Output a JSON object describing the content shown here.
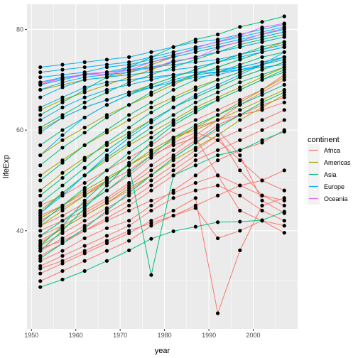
{
  "chart_data": {
    "type": "line",
    "xlabel": "year",
    "ylabel": "lifeExp",
    "xlim": [
      1949,
      2010
    ],
    "ylim": [
      20.5,
      85
    ],
    "x_ticks": [
      1950,
      1960,
      1970,
      1980,
      1990,
      2000
    ],
    "y_ticks": [
      40,
      60,
      80
    ],
    "x": [
      1952,
      1957,
      1962,
      1967,
      1972,
      1977,
      1982,
      1987,
      1992,
      1997,
      2002,
      2007
    ],
    "grid": true,
    "points_color": "#000000",
    "legend": {
      "title": "continent",
      "placement": "right",
      "entries": [
        {
          "name": "Africa",
          "color": "#F8766D"
        },
        {
          "name": "Americas",
          "color": "#A3A500"
        },
        {
          "name": "Asia",
          "color": "#00BF7D"
        },
        {
          "name": "Europe",
          "color": "#00B0F6"
        },
        {
          "name": "Oceania",
          "color": "#E76BF3"
        }
      ]
    },
    "series": [
      {
        "group": "Africa",
        "values": [
          30.0,
          32.0,
          34.0,
          36.0,
          38.0,
          41.0,
          43.0,
          45.0,
          47.0,
          49.0,
          50.0,
          52.0
        ]
      },
      {
        "group": "Africa",
        "values": [
          31.5,
          33.5,
          35.5,
          37.5,
          39.5,
          42.0,
          44.0,
          46.5,
          23.6,
          36.1,
          45.0,
          46.5
        ]
      },
      {
        "group": "Africa",
        "values": [
          33.0,
          35.0,
          37.0,
          39.0,
          41.0,
          44.0,
          46.5,
          48.0,
          49.0,
          47.0,
          44.0,
          42.0
        ]
      },
      {
        "group": "Africa",
        "values": [
          34.0,
          36.0,
          38.5,
          40.5,
          42.0,
          45.0,
          48.0,
          51.0,
          54.0,
          56.0,
          57.5,
          60.0
        ]
      },
      {
        "group": "Africa",
        "values": [
          35.0,
          37.5,
          40.0,
          42.5,
          45.0,
          48.0,
          51.0,
          54.0,
          56.0,
          58.0,
          60.0,
          62.0
        ]
      },
      {
        "group": "Africa",
        "values": [
          36.0,
          38.5,
          41.0,
          43.5,
          46.0,
          49.0,
          52.0,
          55.0,
          58.0,
          60.0,
          62.0,
          64.0
        ]
      },
      {
        "group": "Africa",
        "values": [
          37.0,
          39.5,
          42.0,
          44.5,
          47.0,
          50.0,
          53.0,
          56.0,
          59.0,
          52.0,
          47.0,
          45.0
        ]
      },
      {
        "group": "Africa",
        "values": [
          38.0,
          40.5,
          43.0,
          45.5,
          48.0,
          51.0,
          54.5,
          57.5,
          60.0,
          55.0,
          46.0,
          43.5
        ]
      },
      {
        "group": "Africa",
        "values": [
          39.0,
          41.0,
          43.5,
          46.0,
          49.0,
          52.0,
          55.0,
          58.0,
          61.0,
          63.0,
          65.0,
          66.5
        ]
      },
      {
        "group": "Africa",
        "values": [
          40.0,
          42.0,
          44.0,
          46.5,
          49.5,
          53.0,
          56.0,
          59.0,
          62.0,
          65.0,
          67.5,
          70.0
        ]
      },
      {
        "group": "Africa",
        "values": [
          41.0,
          43.0,
          45.5,
          48.0,
          51.0,
          54.5,
          57.5,
          59.5,
          58.0,
          54.0,
          50.0,
          48.0
        ]
      },
      {
        "group": "Africa",
        "values": [
          42.0,
          44.5,
          47.0,
          49.5,
          52.0,
          55.0,
          57.0,
          58.5,
          51.0,
          44.0,
          42.0,
          41.0
        ]
      },
      {
        "group": "Africa",
        "values": [
          43.0,
          45.0,
          47.5,
          50.0,
          53.0,
          56.0,
          58.5,
          60.5,
          62.0,
          63.0,
          64.0,
          65.5
        ]
      },
      {
        "group": "Africa",
        "values": [
          45.0,
          47.0,
          49.5,
          52.0,
          54.5,
          57.0,
          60.0,
          62.0,
          64.0,
          66.0,
          68.0,
          71.0
        ]
      },
      {
        "group": "Africa",
        "values": [
          32.5,
          34.0,
          36.0,
          38.0,
          40.0,
          41.5,
          43.0,
          44.5,
          38.5,
          40.0,
          42.0,
          39.6
        ]
      },
      {
        "group": "Africa",
        "values": [
          36.5,
          38.0,
          40.0,
          42.0,
          44.0,
          46.0,
          47.5,
          49.5,
          51.0,
          49.0,
          47.0,
          46.0
        ]
      },
      {
        "group": "Americas",
        "values": [
          37.5,
          40.5,
          43.0,
          45.5,
          48.5,
          51.0,
          54.0,
          56.5,
          59.0,
          62.0,
          64.5,
          67.0
        ]
      },
      {
        "group": "Americas",
        "values": [
          41.0,
          44.0,
          47.0,
          50.0,
          53.0,
          55.5,
          58.0,
          60.5,
          63.0,
          65.5,
          68.0,
          70.5
        ]
      },
      {
        "group": "Americas",
        "values": [
          44.0,
          47.5,
          51.0,
          54.0,
          57.0,
          59.5,
          62.0,
          64.5,
          66.5,
          68.5,
          70.5,
          72.5
        ]
      },
      {
        "group": "Americas",
        "values": [
          48.0,
          51.5,
          54.5,
          57.0,
          59.5,
          62.0,
          64.5,
          66.5,
          68.5,
          70.5,
          72.0,
          73.5
        ]
      },
      {
        "group": "Americas",
        "values": [
          51.0,
          54.0,
          57.0,
          59.5,
          62.0,
          64.5,
          66.5,
          68.5,
          70.0,
          71.5,
          73.0,
          74.5
        ]
      },
      {
        "group": "Americas",
        "values": [
          55.0,
          58.0,
          60.5,
          63.0,
          65.0,
          67.0,
          69.0,
          71.0,
          72.5,
          74.0,
          75.5,
          76.5
        ]
      },
      {
        "group": "Americas",
        "values": [
          60.0,
          62.5,
          64.5,
          66.0,
          67.5,
          69.0,
          70.5,
          72.0,
          73.5,
          75.0,
          76.0,
          77.5
        ]
      },
      {
        "group": "Americas",
        "values": [
          64.0,
          66.0,
          67.5,
          69.0,
          70.5,
          72.0,
          73.5,
          74.5,
          75.5,
          76.5,
          77.5,
          78.5
        ]
      },
      {
        "group": "Americas",
        "values": [
          68.0,
          69.0,
          70.0,
          70.5,
          71.5,
          73.0,
          74.5,
          75.5,
          76.5,
          77.5,
          78.5,
          79.5
        ]
      },
      {
        "group": "Americas",
        "values": [
          42.5,
          45.0,
          48.0,
          50.5,
          53.0,
          56.0,
          58.5,
          60.0,
          62.0,
          64.0,
          66.0,
          68.0
        ]
      },
      {
        "group": "Asia",
        "values": [
          28.8,
          30.3,
          32.0,
          34.0,
          36.1,
          38.4,
          39.9,
          40.8,
          41.7,
          41.8,
          42.1,
          43.8
        ]
      },
      {
        "group": "Asia",
        "values": [
          37.0,
          41.0,
          46.0,
          50.0,
          53.0,
          31.2,
          51.0,
          53.0,
          55.0,
          56.0,
          58.0,
          59.7
        ]
      },
      {
        "group": "Asia",
        "values": [
          39.0,
          42.0,
          45.0,
          48.0,
          51.5,
          55.0,
          58.5,
          61.0,
          63.0,
          65.0,
          67.0,
          69.0
        ]
      },
      {
        "group": "Asia",
        "values": [
          41.5,
          45.0,
          48.5,
          52.0,
          55.5,
          58.5,
          61.5,
          64.0,
          66.0,
          68.0,
          70.0,
          71.5
        ]
      },
      {
        "group": "Asia",
        "values": [
          43.5,
          47.5,
          51.0,
          54.5,
          57.5,
          60.5,
          63.0,
          65.5,
          67.5,
          69.5,
          71.0,
          72.5
        ]
      },
      {
        "group": "Asia",
        "values": [
          45.5,
          49.0,
          52.5,
          56.0,
          59.0,
          62.0,
          64.5,
          66.5,
          68.5,
          70.5,
          72.0,
          73.5
        ]
      },
      {
        "group": "Asia",
        "values": [
          47.0,
          50.5,
          54.0,
          57.5,
          60.5,
          63.5,
          66.0,
          68.0,
          70.0,
          71.5,
          73.0,
          74.5
        ]
      },
      {
        "group": "Asia",
        "values": [
          50.0,
          53.5,
          57.0,
          60.0,
          63.0,
          65.5,
          68.0,
          70.0,
          71.5,
          73.0,
          74.5,
          75.5
        ]
      },
      {
        "group": "Asia",
        "values": [
          53.0,
          56.5,
          59.5,
          62.5,
          65.0,
          67.5,
          69.5,
          71.0,
          72.5,
          74.0,
          75.5,
          76.5
        ]
      },
      {
        "group": "Asia",
        "values": [
          57.0,
          60.0,
          62.5,
          65.0,
          67.0,
          69.0,
          70.5,
          72.0,
          73.5,
          75.0,
          76.5,
          77.5
        ]
      },
      {
        "group": "Asia",
        "values": [
          60.5,
          63.0,
          65.5,
          67.5,
          69.5,
          71.0,
          72.5,
          74.0,
          75.5,
          77.0,
          78.0,
          79.0
        ]
      },
      {
        "group": "Asia",
        "values": [
          63.0,
          65.5,
          68.0,
          70.5,
          72.5,
          74.5,
          76.5,
          78.0,
          79.0,
          80.5,
          81.5,
          82.6
        ]
      },
      {
        "group": "Asia",
        "values": [
          36.0,
          40.0,
          44.5,
          49.0,
          53.5,
          57.5,
          61.0,
          63.5,
          66.0,
          68.0,
          70.0,
          72.0
        ]
      },
      {
        "group": "Asia",
        "values": [
          34.5,
          37.5,
          40.5,
          44.0,
          47.5,
          51.0,
          54.5,
          57.5,
          60.5,
          63.0,
          65.5,
          67.5
        ]
      },
      {
        "group": "Europe",
        "values": [
          43.5,
          47.0,
          51.0,
          55.0,
          58.5,
          61.5,
          64.5,
          67.0,
          69.0,
          71.0,
          73.0,
          75.5
        ]
      },
      {
        "group": "Europe",
        "values": [
          55.0,
          59.0,
          62.5,
          65.0,
          67.0,
          68.5,
          70.0,
          71.0,
          71.5,
          72.5,
          73.5,
          74.5
        ]
      },
      {
        "group": "Europe",
        "values": [
          59.5,
          62.5,
          64.5,
          66.0,
          67.5,
          68.5,
          69.5,
          70.5,
          71.0,
          72.0,
          73.0,
          74.0
        ]
      },
      {
        "group": "Europe",
        "values": [
          62.0,
          64.5,
          66.5,
          68.0,
          69.0,
          70.0,
          71.0,
          71.5,
          71.5,
          72.0,
          72.5,
          73.0
        ]
      },
      {
        "group": "Europe",
        "values": [
          64.5,
          66.5,
          68.5,
          69.5,
          70.0,
          70.5,
          71.0,
          71.5,
          72.0,
          72.5,
          73.5,
          74.5
        ]
      },
      {
        "group": "Europe",
        "values": [
          66.5,
          68.5,
          70.0,
          70.5,
          71.0,
          71.5,
          72.0,
          72.5,
          73.5,
          74.5,
          75.5,
          76.5
        ]
      },
      {
        "group": "Europe",
        "values": [
          68.0,
          69.5,
          70.5,
          71.0,
          71.5,
          72.5,
          73.5,
          74.5,
          75.5,
          76.5,
          77.5,
          78.5
        ]
      },
      {
        "group": "Europe",
        "values": [
          69.5,
          70.5,
          71.0,
          71.5,
          72.5,
          73.5,
          74.5,
          75.5,
          76.5,
          77.5,
          78.5,
          79.5
        ]
      },
      {
        "group": "Europe",
        "values": [
          70.5,
          71.0,
          71.5,
          72.5,
          73.0,
          74.0,
          75.0,
          76.0,
          77.0,
          78.0,
          79.0,
          80.0
        ]
      },
      {
        "group": "Europe",
        "values": [
          71.5,
          72.0,
          72.5,
          73.0,
          73.5,
          74.5,
          75.5,
          76.5,
          77.5,
          78.5,
          79.5,
          80.5
        ]
      },
      {
        "group": "Europe",
        "values": [
          72.5,
          73.0,
          73.5,
          74.0,
          74.5,
          75.5,
          76.5,
          77.5,
          78.0,
          79.0,
          80.0,
          81.0
        ]
      },
      {
        "group": "Europe",
        "values": [
          69.0,
          70.0,
          71.0,
          71.5,
          72.0,
          72.5,
          73.0,
          73.5,
          74.0,
          75.0,
          76.0,
          77.0
        ]
      },
      {
        "group": "Oceania",
        "values": [
          69.1,
          70.3,
          71.0,
          71.1,
          71.9,
          73.5,
          74.7,
          76.3,
          77.6,
          78.8,
          80.4,
          81.2
        ]
      },
      {
        "group": "Oceania",
        "values": [
          69.4,
          70.3,
          71.2,
          71.5,
          71.9,
          72.2,
          73.8,
          74.3,
          76.3,
          77.6,
          79.1,
          80.2
        ]
      }
    ]
  }
}
